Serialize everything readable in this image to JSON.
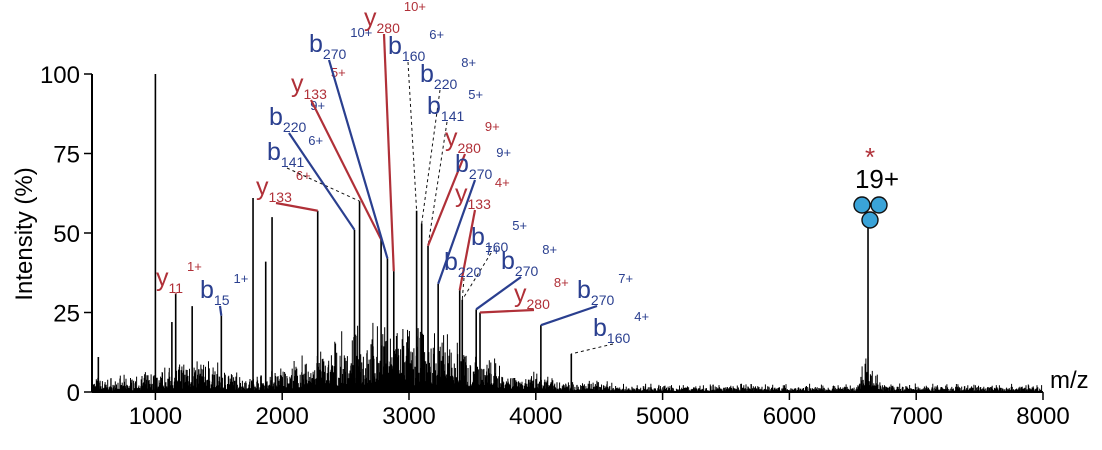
{
  "chart_data": {
    "type": "line",
    "title": "",
    "xlabel": "m/z",
    "ylabel": "Intensity (%)",
    "xlim": [
      500,
      8000
    ],
    "ylim": [
      0,
      100
    ],
    "x_ticks": [
      1000,
      2000,
      3000,
      4000,
      5000,
      6000,
      7000,
      8000
    ],
    "x_tick_labels": [
      "1000",
      "2000",
      "3000",
      "4000",
      "5000",
      "6000",
      "7000",
      "8000"
    ],
    "y_ticks": [
      0,
      25,
      50,
      75,
      100
    ],
    "y_tick_labels": [
      "0",
      "25",
      "50",
      "75",
      "100"
    ],
    "grid": false,
    "colors": {
      "y_ion": "#b03038",
      "b_ion": "#2a3f8f",
      "spectrum": "#000000",
      "glycan": "#3aa3d8"
    },
    "peaks": [
      {
        "x": 550,
        "y": 11
      },
      {
        "x": 1000,
        "y": 100
      },
      {
        "x": 1130,
        "y": 22
      },
      {
        "x": 1160,
        "y": 31
      },
      {
        "x": 1290,
        "y": 27
      },
      {
        "x": 1520,
        "y": 24
      },
      {
        "x": 1770,
        "y": 61
      },
      {
        "x": 1870,
        "y": 41
      },
      {
        "x": 1920,
        "y": 55
      },
      {
        "x": 2280,
        "y": 57
      },
      {
        "x": 2570,
        "y": 51
      },
      {
        "x": 2610,
        "y": 60
      },
      {
        "x": 2780,
        "y": 48
      },
      {
        "x": 2830,
        "y": 42
      },
      {
        "x": 2880,
        "y": 38
      },
      {
        "x": 3060,
        "y": 57
      },
      {
        "x": 3100,
        "y": 53
      },
      {
        "x": 3150,
        "y": 46
      },
      {
        "x": 3230,
        "y": 34
      },
      {
        "x": 3400,
        "y": 32
      },
      {
        "x": 3420,
        "y": 29
      },
      {
        "x": 3530,
        "y": 26
      },
      {
        "x": 3560,
        "y": 25
      },
      {
        "x": 4040,
        "y": 21
      },
      {
        "x": 4280,
        "y": 12
      },
      {
        "x": 6620,
        "y": 52
      }
    ],
    "annotations": [
      {
        "ion": "y",
        "sub": "11",
        "charge": "1+",
        "x": 1160,
        "y": 31
      },
      {
        "ion": "b",
        "sub": "15",
        "charge": "1+",
        "x": 1520,
        "y": 24
      },
      {
        "ion": "y",
        "sub": "133",
        "charge": "6+",
        "x": 2280,
        "y": 57
      },
      {
        "ion": "b",
        "sub": "141",
        "charge": "6+",
        "x": 2610,
        "y": 60
      },
      {
        "ion": "b",
        "sub": "220",
        "charge": "9+",
        "x": 2570,
        "y": 51
      },
      {
        "ion": "y",
        "sub": "133",
        "charge": "5+",
        "x": 2780,
        "y": 48
      },
      {
        "ion": "b",
        "sub": "270",
        "charge": "10+",
        "x": 2830,
        "y": 42
      },
      {
        "ion": "y",
        "sub": "280",
        "charge": "10+",
        "x": 2880,
        "y": 38
      },
      {
        "ion": "b",
        "sub": "160",
        "charge": "6+",
        "x": 3060,
        "y": 57
      },
      {
        "ion": "b",
        "sub": "220",
        "charge": "8+",
        "x": 3100,
        "y": 53
      },
      {
        "ion": "b",
        "sub": "141",
        "charge": "5+",
        "x": 3150,
        "y": 46
      },
      {
        "ion": "y",
        "sub": "280",
        "charge": "9+",
        "x": 3150,
        "y": 46
      },
      {
        "ion": "b",
        "sub": "270",
        "charge": "9+",
        "x": 3230,
        "y": 34
      },
      {
        "ion": "y",
        "sub": "133",
        "charge": "4+",
        "x": 3400,
        "y": 32
      },
      {
        "ion": "b",
        "sub": "160",
        "charge": "5+",
        "x": 3420,
        "y": 29
      },
      {
        "ion": "b",
        "sub": "220",
        "charge": "7+",
        "x": 3420,
        "y": 29
      },
      {
        "ion": "b",
        "sub": "270",
        "charge": "8+",
        "x": 3530,
        "y": 26
      },
      {
        "ion": "y",
        "sub": "280",
        "charge": "8+",
        "x": 3560,
        "y": 25
      },
      {
        "ion": "b",
        "sub": "270",
        "charge": "7+",
        "x": 4040,
        "y": 21
      },
      {
        "ion": "b",
        "sub": "160",
        "charge": "4+",
        "x": 4280,
        "y": 12
      }
    ],
    "charge_state_label": {
      "text": "19+",
      "marker": "*",
      "x": 6620,
      "y": 52
    }
  }
}
